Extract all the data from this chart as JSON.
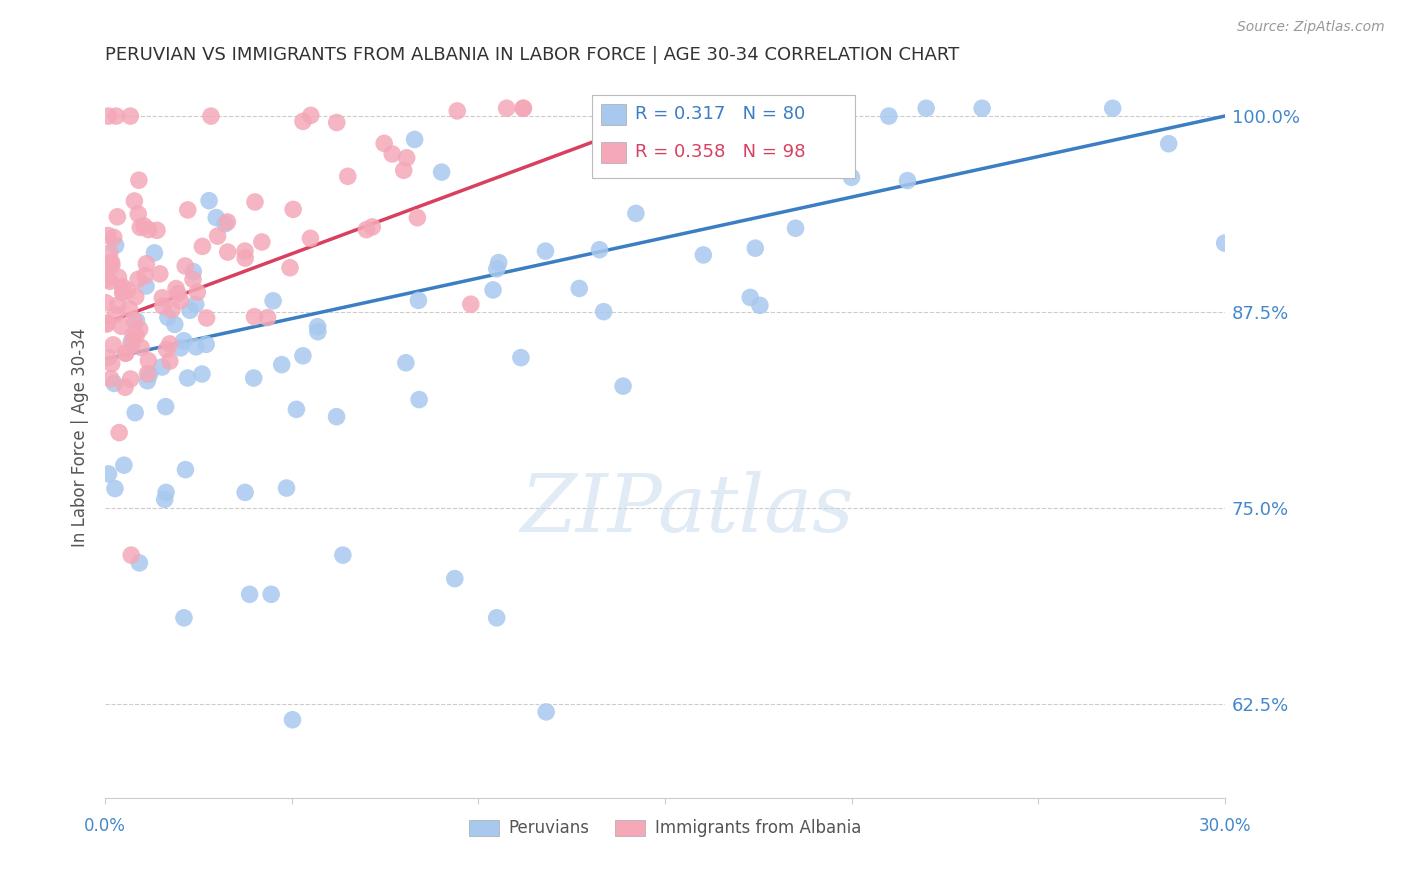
{
  "title": "PERUVIAN VS IMMIGRANTS FROM ALBANIA IN LABOR FORCE | AGE 30-34 CORRELATION CHART",
  "source": "Source: ZipAtlas.com",
  "ylabel": "In Labor Force | Age 30-34",
  "yticks": [
    0.625,
    0.75,
    0.875,
    1.0
  ],
  "ytick_labels": [
    "62.5%",
    "75.0%",
    "87.5%",
    "100.0%"
  ],
  "xlim": [
    0.0,
    0.3
  ],
  "ylim": [
    0.565,
    1.025
  ],
  "legend_blue_R": "0.317",
  "legend_blue_N": "80",
  "legend_pink_R": "0.358",
  "legend_pink_N": "98",
  "blue_color": "#A8C8EE",
  "pink_color": "#F4A8B8",
  "blue_line_color": "#3B7EC4",
  "pink_line_color": "#D94060",
  "pink_line_dashed_color": "#E8A0B0",
  "watermark_text": "ZIPatlas",
  "title_fontsize": 13,
  "source_fontsize": 10,
  "axis_label_color": "#4488CC",
  "ylabel_color": "#555555"
}
